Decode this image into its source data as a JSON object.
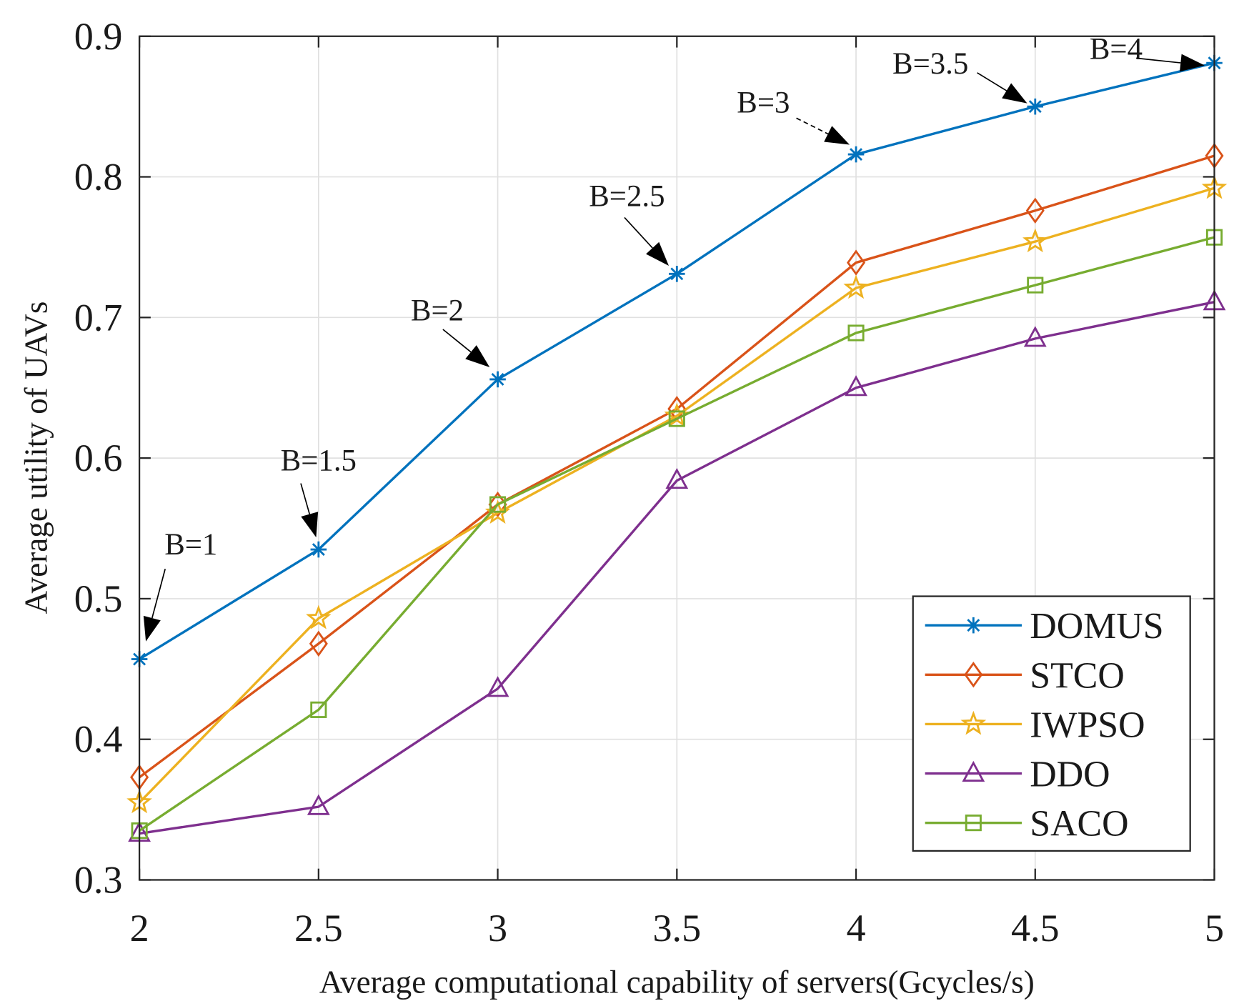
{
  "chart_data": {
    "type": "line",
    "title": "",
    "xlabel": "Average computational capability of servers(Gcycles/s)",
    "ylabel": "Average utility of UAVs",
    "xlim": [
      2,
      5
    ],
    "ylim": [
      0.3,
      0.9
    ],
    "grid": true,
    "legend_position": "bottom-right",
    "x": [
      2,
      2.5,
      3,
      3.5,
      4,
      4.5,
      5
    ],
    "xticks": [
      "2",
      "2.5",
      "3",
      "3.5",
      "4",
      "4.5",
      "5"
    ],
    "yticks": [
      "0.3",
      "0.4",
      "0.5",
      "0.6",
      "0.7",
      "0.8",
      "0.9"
    ],
    "series": [
      {
        "name": "DOMUS",
        "color": "#0072BD",
        "marker": "asterisk",
        "values": [
          0.457,
          0.535,
          0.656,
          0.731,
          0.816,
          0.85,
          0.881
        ]
      },
      {
        "name": "STCO",
        "color": "#D95319",
        "marker": "diamond",
        "values": [
          0.373,
          0.468,
          0.567,
          0.635,
          0.739,
          0.776,
          0.815
        ]
      },
      {
        "name": "IWPSO",
        "color": "#EDB120",
        "marker": "star",
        "values": [
          0.355,
          0.486,
          0.561,
          0.63,
          0.721,
          0.754,
          0.792
        ]
      },
      {
        "name": "DDO",
        "color": "#7E2F8E",
        "marker": "triangle",
        "values": [
          0.333,
          0.352,
          0.436,
          0.584,
          0.65,
          0.685,
          0.711
        ]
      },
      {
        "name": "SACO",
        "color": "#77AC30",
        "marker": "square",
        "values": [
          0.335,
          0.421,
          0.567,
          0.628,
          0.689,
          0.723,
          0.757
        ]
      }
    ],
    "annotations": [
      {
        "text": "B=1",
        "x": 2,
        "series": "DOMUS"
      },
      {
        "text": "B=1.5",
        "x": 2.5,
        "series": "DOMUS"
      },
      {
        "text": "B=2",
        "x": 3,
        "series": "DOMUS"
      },
      {
        "text": "B=2.5",
        "x": 3.5,
        "series": "DOMUS"
      },
      {
        "text": "B=3",
        "x": 4,
        "series": "DOMUS"
      },
      {
        "text": "B=3.5",
        "x": 4.5,
        "series": "DOMUS"
      },
      {
        "text": "B=4",
        "x": 5,
        "series": "DOMUS"
      }
    ]
  }
}
